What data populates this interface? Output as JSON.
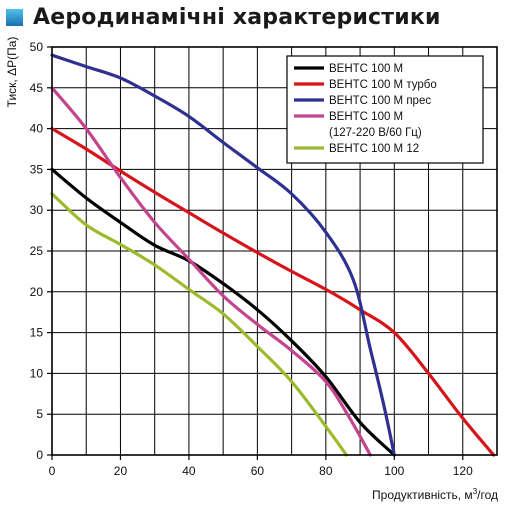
{
  "title": "Аеродинамічні характеристики",
  "colors": {
    "title_marker_top": "#4fc3e8",
    "title_marker_bottom": "#1b6fb0",
    "grid": "#000000"
  },
  "chart_data": {
    "type": "line",
    "xlabel_main": "Продуктивність, м",
    "xlabel_sup": "3",
    "xlabel_tail": "/год",
    "ylabel": "Тиск, ΔР(Па)",
    "xlim": [
      0,
      130
    ],
    "ylim": [
      0,
      50
    ],
    "x_ticks": [
      0,
      20,
      40,
      60,
      80,
      100,
      120
    ],
    "y_ticks": [
      0,
      5,
      10,
      15,
      20,
      25,
      30,
      35,
      40,
      45,
      50
    ],
    "x_grid_step": 10,
    "y_grid_step": 5,
    "grid": true,
    "legend_position": "top-right",
    "series": [
      {
        "name": "ВЕНТС 100 М",
        "label_lines": [
          "ВЕНТС 100 М"
        ],
        "color": "#000000",
        "points": [
          [
            0,
            35
          ],
          [
            10,
            31.5
          ],
          [
            20,
            28.5
          ],
          [
            30,
            25.7
          ],
          [
            40,
            23.8
          ],
          [
            50,
            21
          ],
          [
            60,
            17.8
          ],
          [
            70,
            14
          ],
          [
            80,
            9.6
          ],
          [
            90,
            4
          ],
          [
            100,
            0
          ]
        ]
      },
      {
        "name": "ВЕНТС 100 М турбо",
        "label_lines": [
          "ВЕНТС 100 М турбо"
        ],
        "color": "#d7141a",
        "points": [
          [
            0,
            40
          ],
          [
            10,
            37.5
          ],
          [
            20,
            34.8
          ],
          [
            30,
            32.2
          ],
          [
            40,
            29.7
          ],
          [
            50,
            27.2
          ],
          [
            60,
            24.8
          ],
          [
            70,
            22.5
          ],
          [
            80,
            20.3
          ],
          [
            90,
            17.8
          ],
          [
            100,
            15
          ],
          [
            110,
            10
          ],
          [
            120,
            4.5
          ],
          [
            129,
            0
          ]
        ]
      },
      {
        "name": "ВЕНТС 100 М прес",
        "label_lines": [
          "ВЕНТС 100 М прес"
        ],
        "color": "#2e3192",
        "points": [
          [
            0,
            49
          ],
          [
            10,
            47.6
          ],
          [
            20,
            46.2
          ],
          [
            30,
            44
          ],
          [
            40,
            41.5
          ],
          [
            50,
            38.3
          ],
          [
            60,
            35.2
          ],
          [
            70,
            32
          ],
          [
            80,
            27.3
          ],
          [
            88,
            21.5
          ],
          [
            93,
            13
          ],
          [
            97,
            6
          ],
          [
            100,
            0
          ]
        ]
      },
      {
        "name": "ВЕНТС 100 М (127-220 В/60 Гц)",
        "label_lines": [
          "ВЕНТС 100 М",
          "(127-220 В/60 Гц)"
        ],
        "color": "#c4458e",
        "points": [
          [
            0,
            45
          ],
          [
            10,
            40
          ],
          [
            20,
            34
          ],
          [
            30,
            28.5
          ],
          [
            40,
            24
          ],
          [
            50,
            19.5
          ],
          [
            60,
            16
          ],
          [
            70,
            12.8
          ],
          [
            80,
            9
          ],
          [
            87,
            4.5
          ],
          [
            93,
            0
          ]
        ]
      },
      {
        "name": "ВЕНТС 100 М 12",
        "label_lines": [
          "ВЕНТС 100 М 12"
        ],
        "color": "#9bbb2d",
        "points": [
          [
            0,
            32
          ],
          [
            10,
            28.2
          ],
          [
            20,
            25.8
          ],
          [
            30,
            23.3
          ],
          [
            40,
            20.3
          ],
          [
            50,
            17.3
          ],
          [
            60,
            13.3
          ],
          [
            70,
            9
          ],
          [
            80,
            3.5
          ],
          [
            86,
            0
          ]
        ]
      }
    ]
  }
}
